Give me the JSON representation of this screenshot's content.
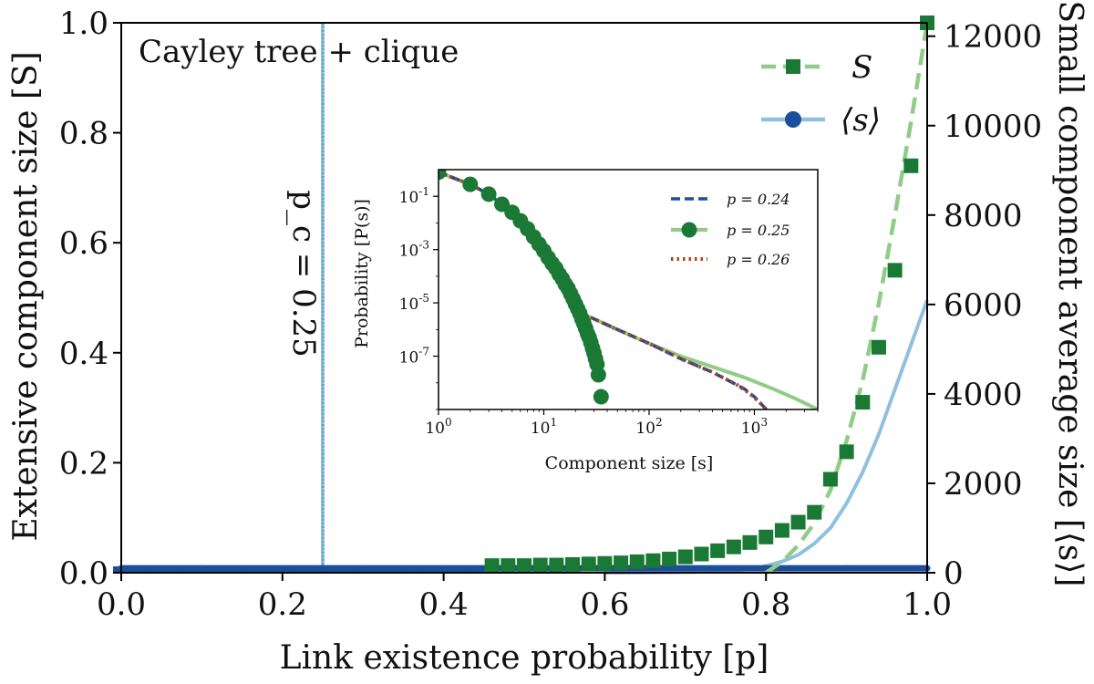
{
  "chart_data": {
    "type": "line",
    "title": "Cayley tree + clique",
    "xlabel": "Link existence probability [p]",
    "ylabel_left": "Extensive component size [S]",
    "ylabel_right": "Small component average size [⟨s⟩]",
    "xlim": [
      0,
      1
    ],
    "ylim_left": [
      0,
      1
    ],
    "ylim_right": [
      0,
      12300
    ],
    "x_ticks": [
      "0.0",
      "0.2",
      "0.4",
      "0.6",
      "0.8",
      "1.0"
    ],
    "y_left_ticks": [
      "0.0",
      "0.2",
      "0.4",
      "0.6",
      "0.8",
      "1.0"
    ],
    "y_right_ticks": [
      "0",
      "2000",
      "4000",
      "6000",
      "8000",
      "10000",
      "12000"
    ],
    "threshold_line": {
      "x": 0.25,
      "label": "p_c = 0.25"
    },
    "legend": {
      "position": "top-right",
      "entries": [
        "S",
        "⟨s⟩"
      ]
    },
    "series": [
      {
        "name": "S",
        "marker": "square",
        "color": "#1a7a35",
        "axis": "left",
        "x": [
          0.0,
          0.02,
          0.04,
          0.06,
          0.08,
          0.1,
          0.12,
          0.14,
          0.16,
          0.18,
          0.2,
          0.22,
          0.24,
          0.26,
          0.28,
          0.3,
          0.32,
          0.34,
          0.36,
          0.38,
          0.4,
          0.42,
          0.44,
          0.46,
          0.48,
          0.5,
          0.52,
          0.54,
          0.56,
          0.58,
          0.6,
          0.62,
          0.64,
          0.66,
          0.68,
          0.7,
          0.72,
          0.74,
          0.76,
          0.78,
          0.8,
          0.82,
          0.84,
          0.86,
          0.88,
          0.9,
          0.92,
          0.94,
          0.96,
          0.98,
          1.0
        ],
        "values": [
          0.005,
          0.005,
          0.005,
          0.005,
          0.005,
          0.005,
          0.005,
          0.005,
          0.005,
          0.005,
          0.005,
          0.005,
          0.005,
          0.005,
          0.005,
          0.005,
          0.005,
          0.005,
          0.005,
          0.005,
          0.005,
          0.005,
          0.005,
          0.013,
          0.013,
          0.013,
          0.014,
          0.014,
          0.015,
          0.016,
          0.017,
          0.018,
          0.02,
          0.022,
          0.025,
          0.029,
          0.034,
          0.04,
          0.047,
          0.055,
          0.065,
          0.077,
          0.092,
          0.11,
          0.17,
          0.22,
          0.31,
          0.41,
          0.55,
          0.74,
          1.0
        ]
      },
      {
        "name": "S theory",
        "style": "dashed",
        "color": "#90cc88",
        "axis": "left",
        "x": [
          0.8,
          0.82,
          0.84,
          0.86,
          0.88,
          0.9,
          0.92,
          0.94,
          0.96,
          0.98,
          1.0
        ],
        "values": [
          0.0,
          0.02,
          0.05,
          0.09,
          0.15,
          0.24,
          0.35,
          0.49,
          0.65,
          0.82,
          1.0
        ]
      },
      {
        "name": "⟨s⟩",
        "marker": "circle",
        "color": "#1b4f9a",
        "axis": "right",
        "x": [
          0.0,
          0.1,
          0.2,
          0.3,
          0.4,
          0.5,
          0.6,
          0.7,
          0.8,
          0.9,
          1.0
        ],
        "values": [
          100,
          100,
          100,
          100,
          100,
          100,
          100,
          100,
          100,
          100,
          100
        ]
      },
      {
        "name": "⟨s⟩ theory",
        "style": "solid",
        "color": "#90c0df",
        "axis": "right",
        "x": [
          0.6,
          0.65,
          0.7,
          0.72,
          0.74,
          0.76,
          0.78,
          0.8,
          0.82,
          0.84,
          0.86,
          0.88,
          0.9,
          0.92,
          0.94,
          0.96,
          0.98,
          1.0
        ],
        "values": [
          0,
          5,
          15,
          20,
          30,
          50,
          80,
          150,
          250,
          400,
          650,
          1000,
          1550,
          2250,
          3100,
          4100,
          5100,
          6100
        ]
      }
    ],
    "inset": {
      "xlabel": "Component size [s]",
      "ylabel": "Probability [P(s)]",
      "x_scale": "log",
      "y_scale": "log",
      "xlim": [
        1,
        4000
      ],
      "ylim": [
        1e-09,
        1
      ],
      "x_ticks": [
        "10^0",
        "10^1",
        "10^2",
        "10^3"
      ],
      "y_ticks": [
        "10^-1",
        "10^-3",
        "10^-5",
        "10^-7"
      ],
      "legend": {
        "position": "top-right"
      },
      "series": [
        {
          "name": "p = 0.24",
          "style": "dashed",
          "color": "#1b4f9a",
          "x": [
            1,
            2,
            3,
            5,
            8,
            12,
            16,
            20,
            30,
            50,
            100,
            200,
            400,
            800,
            1000,
            1300
          ],
          "y": [
            0.8,
            0.28,
            0.12,
            0.025,
            0.003,
            0.0003,
            4e-05,
            5e-06,
            2.5e-06,
            1e-06,
            3e-07,
            8e-08,
            2.5e-08,
            6e-09,
            3e-09,
            1e-09
          ]
        },
        {
          "name": "p = 0.25",
          "style": "solid",
          "marker": "circle",
          "color": "#8fcd84",
          "marker_color": "#1a7a35",
          "x": [
            1,
            2,
            3,
            5,
            8,
            12,
            16,
            20,
            30,
            50,
            100,
            200,
            400,
            800,
            1500,
            2500,
            4000
          ],
          "y": [
            0.8,
            0.28,
            0.12,
            0.025,
            0.003,
            0.0003,
            4e-05,
            5e-06,
            2.5e-06,
            1e-06,
            3e-07,
            1e-07,
            4e-08,
            1.6e-08,
            6e-09,
            2.5e-09,
            1e-09
          ],
          "points": {
            "x": [
              1,
              2,
              3,
              4,
              5,
              6,
              7,
              8,
              9,
              10,
              11,
              12,
              13,
              14,
              15,
              16,
              17,
              18,
              19,
              20,
              21,
              22,
              23,
              24,
              25,
              26,
              27,
              28,
              29,
              30,
              31,
              32,
              33,
              35
            ],
            "y": [
              0.8,
              0.28,
              0.12,
              0.05,
              0.025,
              0.012,
              0.006,
              0.003,
              0.0016,
              0.0009,
              0.0005,
              0.0003,
              0.0002,
              0.00012,
              8e-05,
              5e-05,
              3.5e-05,
              2.2e-05,
              1.4e-05,
              9e-06,
              6e-06,
              4e-06,
              2.5e-06,
              1.7e-06,
              1.1e-06,
              7e-07,
              5e-07,
              3.2e-07,
              2e-07,
              1.3e-07,
              8e-08,
              5e-08,
              2e-08,
              3e-09
            ]
          }
        },
        {
          "name": "p = 0.26",
          "style": "dotted",
          "color": "#b0411d",
          "x": [
            1,
            2,
            3,
            5,
            8,
            12,
            16,
            20,
            30,
            50,
            100,
            200,
            400,
            700,
            900,
            1100,
            1300
          ],
          "y": [
            0.8,
            0.28,
            0.12,
            0.025,
            0.003,
            0.0003,
            4e-05,
            5e-06,
            2.5e-06,
            1e-06,
            3e-07,
            8e-08,
            2.5e-08,
            8e-09,
            4e-09,
            2e-09,
            1e-09
          ]
        }
      ]
    }
  }
}
